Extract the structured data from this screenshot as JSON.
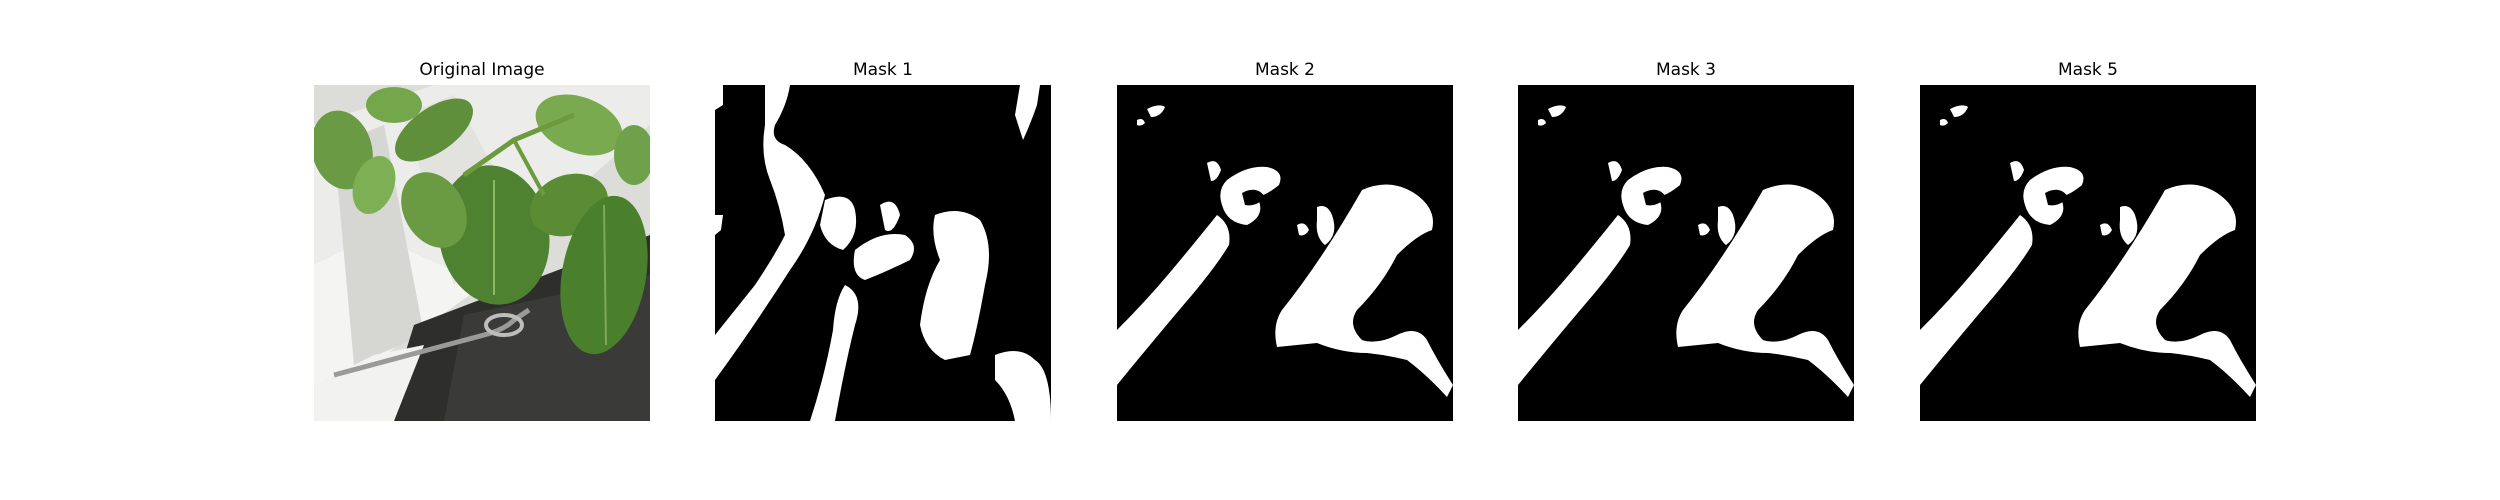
{
  "figure": {
    "panels": [
      {
        "title": "Original Image",
        "kind": "photo",
        "subject": "pepper-plant-leaves"
      },
      {
        "title": "Mask 1",
        "kind": "binary-mask"
      },
      {
        "title": "Mask 2",
        "kind": "binary-mask"
      },
      {
        "title": "Mask 3",
        "kind": "binary-mask"
      },
      {
        "title": "Mask 5",
        "kind": "binary-mask"
      }
    ],
    "colors": {
      "mask_background": "#000000",
      "mask_foreground": "#ffffff",
      "leaf_green": "#5a8a3a",
      "pot_white": "#e8e8e6",
      "soil_dark": "#2c2c2c"
    }
  }
}
